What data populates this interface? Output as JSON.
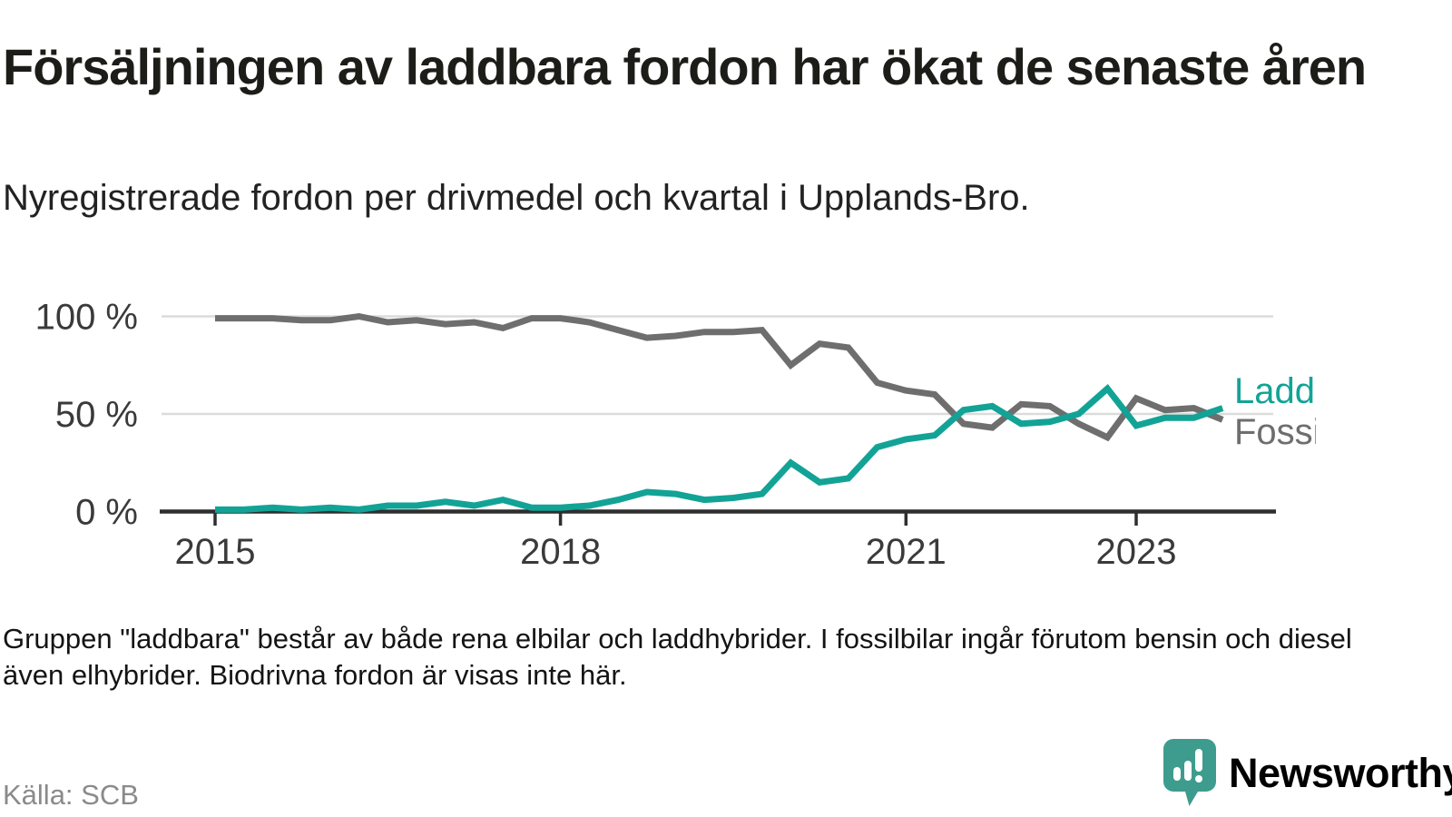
{
  "header": {
    "title": "Försäljningen av laddbara fordon har ökat de senaste åren",
    "subtitle": "Nyregistrerade fordon per drivmedel och kvartal i Upplands-Bro."
  },
  "chart_data": {
    "type": "line",
    "title": "Försäljningen av laddbara fordon har ökat de senaste åren",
    "subtitle": "Nyregistrerade fordon per drivmedel och kvartal i Upplands-Bro.",
    "unit": "percent",
    "ylim": [
      0,
      100
    ],
    "grid": "horizontal",
    "legend_position": "right-of-line-end",
    "y_ticks": [
      {
        "value": 0,
        "label": "0 %"
      },
      {
        "value": 50,
        "label": "50 %"
      },
      {
        "value": 100,
        "label": "100 %"
      }
    ],
    "x_ticks": [
      {
        "label": "2015",
        "q": 0
      },
      {
        "label": "2018",
        "q": 12
      },
      {
        "label": "2021",
        "q": 24
      },
      {
        "label": "2023",
        "q": 32
      }
    ],
    "quarters": [
      "2015 Q1",
      "2015 Q2",
      "2015 Q3",
      "2015 Q4",
      "2016 Q1",
      "2016 Q2",
      "2016 Q3",
      "2016 Q4",
      "2017 Q1",
      "2017 Q2",
      "2017 Q3",
      "2017 Q4",
      "2018 Q1",
      "2018 Q2",
      "2018 Q3",
      "2018 Q4",
      "2019 Q1",
      "2019 Q2",
      "2019 Q3",
      "2019 Q4",
      "2020 Q1",
      "2020 Q2",
      "2020 Q3",
      "2020 Q4",
      "2021 Q1",
      "2021 Q2",
      "2021 Q3",
      "2021 Q4",
      "2022 Q1",
      "2022 Q2",
      "2022 Q3",
      "2022 Q4",
      "2023 Q1",
      "2023 Q2",
      "2023 Q3",
      "2023 Q4"
    ],
    "series": [
      {
        "name": "Laddbara",
        "color": "#12a396",
        "values": [
          1,
          1,
          2,
          1,
          2,
          1,
          3,
          3,
          5,
          3,
          6,
          2,
          2,
          3,
          6,
          10,
          9,
          6,
          7,
          9,
          25,
          15,
          17,
          33,
          37,
          39,
          52,
          54,
          45,
          46,
          50,
          63,
          44,
          48,
          48,
          53
        ]
      },
      {
        "name": "Fossilbilar",
        "color": "#6e6e6e",
        "values": [
          99,
          99,
          99,
          98,
          98,
          100,
          97,
          98,
          96,
          97,
          94,
          99,
          99,
          97,
          93,
          89,
          90,
          92,
          92,
          93,
          75,
          86,
          84,
          66,
          62,
          60,
          45,
          43,
          55,
          54,
          45,
          38,
          58,
          52,
          53,
          47
        ]
      }
    ]
  },
  "footnote": "Gruppen \"laddbara\" består av både rena elbilar och laddhybrider. I fossilbilar ingår förutom bensin och diesel även elhybrider. Biodrivna fordon är visas inte här.",
  "source": "Källa: SCB",
  "branding": {
    "name": "Newsworthy",
    "logo_icon": "bar-chart-speech-bubble-icon",
    "color": "#3e9c8e"
  }
}
